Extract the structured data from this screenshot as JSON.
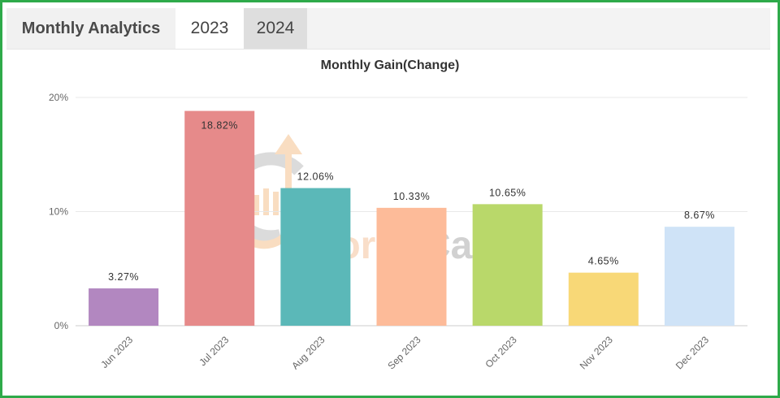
{
  "header": {
    "title": "Monthly Analytics",
    "tabs": [
      {
        "label": "2023",
        "active": true
      },
      {
        "label": "2024",
        "active": false
      }
    ]
  },
  "watermark": {
    "word1": "Forex",
    "word2": "Carry"
  },
  "colors": {
    "frame": "#2eaa4a",
    "bars": [
      "#b287c0",
      "#e68a8a",
      "#5bb8b8",
      "#fdbb99",
      "#b9d86a",
      "#f8d877",
      "#cfe3f7"
    ]
  },
  "chart_data": {
    "type": "bar",
    "title": "Monthly Gain(Change)",
    "categories": [
      "Jun 2023",
      "Jul 2023",
      "Aug 2023",
      "Sep 2023",
      "Oct 2023",
      "Nov 2023",
      "Dec 2023"
    ],
    "values": [
      3.27,
      18.82,
      12.06,
      10.33,
      10.65,
      4.65,
      8.67
    ],
    "data_labels": [
      "3.27%",
      "18.82%",
      "12.06%",
      "10.33%",
      "10.65%",
      "4.65%",
      "8.67%"
    ],
    "y_ticks": [
      "0%",
      "10%",
      "20%"
    ],
    "ylim": [
      0,
      20
    ],
    "grid": true,
    "legend": "none"
  }
}
